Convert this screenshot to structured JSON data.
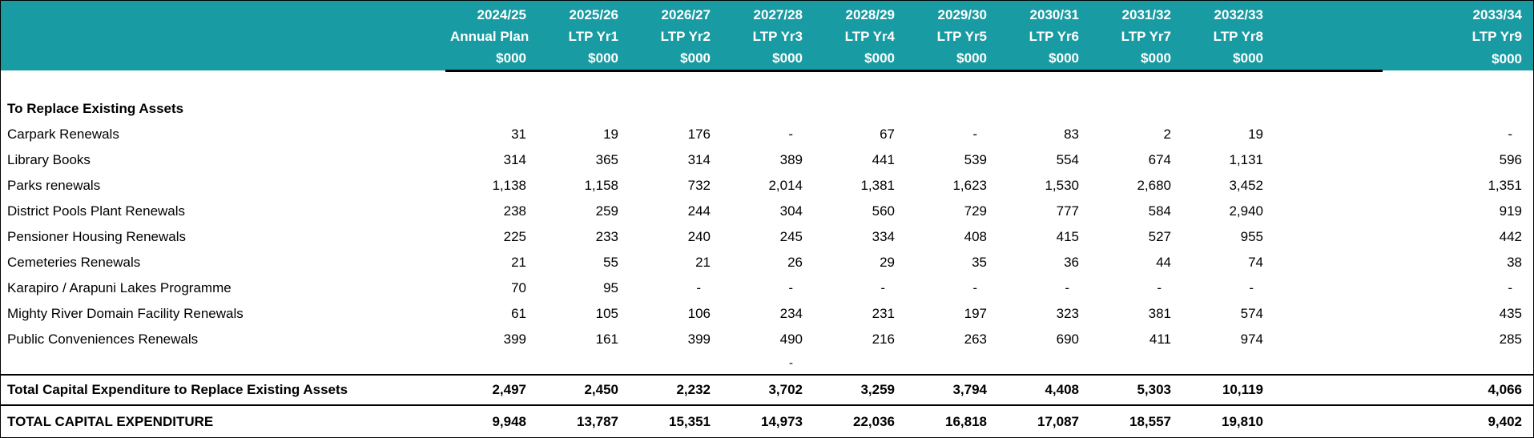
{
  "colors": {
    "accent": "#189ba2",
    "header_text": "#ffffff"
  },
  "columns": [
    {
      "year": "2024/25",
      "sub": "Annual Plan",
      "unit": "$000"
    },
    {
      "year": "2025/26",
      "sub": "LTP Yr1",
      "unit": "$000"
    },
    {
      "year": "2026/27",
      "sub": "LTP Yr2",
      "unit": "$000"
    },
    {
      "year": "2027/28",
      "sub": "LTP Yr3",
      "unit": "$000"
    },
    {
      "year": "2028/29",
      "sub": "LTP Yr4",
      "unit": "$000"
    },
    {
      "year": "2029/30",
      "sub": "LTP Yr5",
      "unit": "$000"
    },
    {
      "year": "2030/31",
      "sub": "LTP Yr6",
      "unit": "$000"
    },
    {
      "year": "2031/32",
      "sub": "LTP Yr7",
      "unit": "$000"
    },
    {
      "year": "2032/33",
      "sub": "LTP Yr8",
      "unit": "$000"
    },
    {
      "year": "2033/34",
      "sub": "LTP Yr9",
      "unit": "$000"
    }
  ],
  "section_title": "To Replace Existing Assets",
  "rows": [
    {
      "label": "Carpark Renewals",
      "values": [
        "31",
        "19",
        "176",
        "-",
        "67",
        "-",
        "83",
        "2",
        "19",
        "-"
      ]
    },
    {
      "label": "Library Books",
      "values": [
        "314",
        "365",
        "314",
        "389",
        "441",
        "539",
        "554",
        "674",
        "1,131",
        "596"
      ]
    },
    {
      "label": "Parks renewals",
      "values": [
        "1,138",
        "1,158",
        "732",
        "2,014",
        "1,381",
        "1,623",
        "1,530",
        "2,680",
        "3,452",
        "1,351"
      ]
    },
    {
      "label": "District Pools Plant Renewals",
      "values": [
        "238",
        "259",
        "244",
        "304",
        "560",
        "729",
        "777",
        "584",
        "2,940",
        "919"
      ]
    },
    {
      "label": "Pensioner Housing Renewals",
      "values": [
        "225",
        "233",
        "240",
        "245",
        "334",
        "408",
        "415",
        "527",
        "955",
        "442"
      ]
    },
    {
      "label": "Cemeteries Renewals",
      "values": [
        "21",
        "55",
        "21",
        "26",
        "29",
        "35",
        "36",
        "44",
        "74",
        "38"
      ]
    },
    {
      "label": "Karapiro / Arapuni Lakes Programme",
      "values": [
        "70",
        "95",
        "-",
        "-",
        "-",
        "-",
        "-",
        "-",
        "-",
        "-"
      ]
    },
    {
      "label": "Mighty River Domain Facility Renewals",
      "values": [
        "61",
        "105",
        "106",
        "234",
        "231",
        "197",
        "323",
        "381",
        "574",
        "435"
      ]
    },
    {
      "label": "Public Conveniences Renewals",
      "values": [
        "399",
        "161",
        "399",
        "490",
        "216",
        "263",
        "690",
        "411",
        "974",
        "285"
      ]
    }
  ],
  "dash_row": {
    "label": "",
    "values": [
      "",
      "",
      "",
      "-",
      "",
      "",
      "",
      "",
      "",
      ""
    ]
  },
  "total_rows": [
    {
      "label": "Total Capital Expenditure to Replace Existing Assets",
      "values": [
        "2,497",
        "2,450",
        "2,232",
        "3,702",
        "3,259",
        "3,794",
        "4,408",
        "5,303",
        "10,119",
        "4,066"
      ]
    },
    {
      "label": "TOTAL CAPITAL EXPENDITURE",
      "values": [
        "9,948",
        "13,787",
        "15,351",
        "14,973",
        "22,036",
        "16,818",
        "17,087",
        "18,557",
        "19,810",
        "9,402"
      ]
    }
  ]
}
